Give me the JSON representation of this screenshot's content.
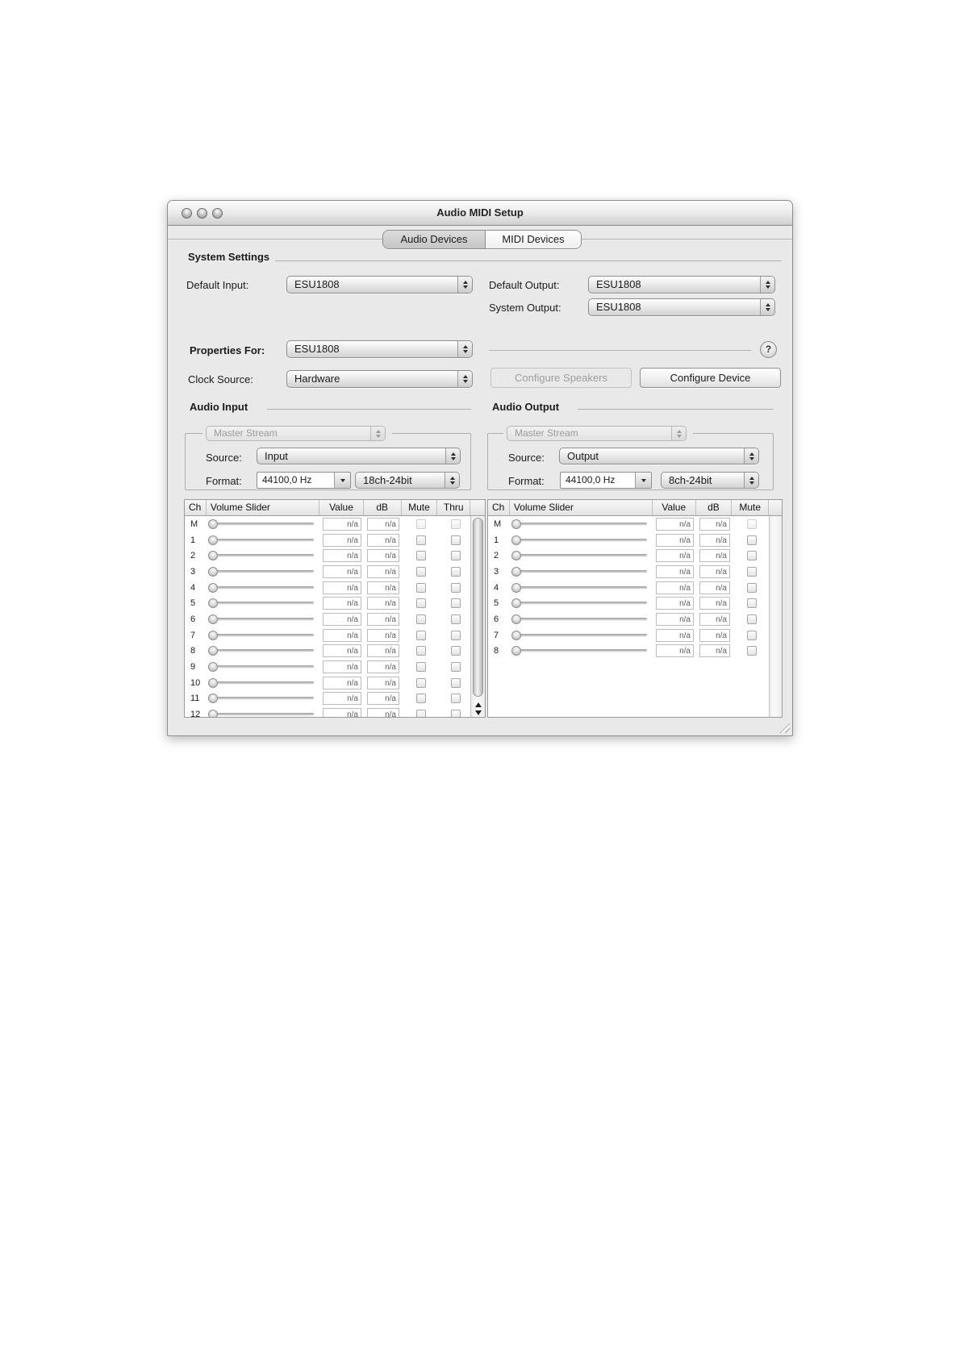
{
  "colors": {
    "window_bg": "#e9e9e9",
    "titlebar_top": "#fbfbfb",
    "titlebar_bottom": "#c6c6c6",
    "selected_tab": "#cdcdcd",
    "unselected_tab": "#ffffff",
    "text": "#1b1b1b",
    "disabled_text": "#9b9b9b"
  },
  "window": {
    "title": "Audio MIDI Setup",
    "tabs": [
      {
        "label": "Audio Devices",
        "selected": true
      },
      {
        "label": "MIDI Devices",
        "selected": false
      }
    ],
    "system_settings": {
      "heading": "System Settings",
      "default_input": {
        "label": "Default Input:",
        "value": "ESU1808"
      },
      "default_output": {
        "label": "Default Output:",
        "value": "ESU1808"
      },
      "system_output": {
        "label": "System Output:",
        "value": "ESU1808"
      },
      "properties_for": {
        "label": "Properties For:",
        "value": "ESU1808"
      },
      "clock_source": {
        "label": "Clock Source:",
        "value": "Hardware"
      },
      "configure_speakers_label": "Configure Speakers",
      "configure_device_label": "Configure Device",
      "help_label": "?"
    },
    "audio_input": {
      "heading": "Audio Input",
      "stream": "Master Stream",
      "source": {
        "label": "Source:",
        "value": "Input"
      },
      "format": {
        "label": "Format:",
        "rate": "44100,0 Hz",
        "depth": "18ch-24bit"
      },
      "table": {
        "headers": [
          "Ch",
          "Volume Slider",
          "Value",
          "dB",
          "Mute",
          "Thru"
        ],
        "rows": [
          {
            "ch": "M",
            "value": "n/a",
            "db": "n/a",
            "mute": false,
            "thru": false
          },
          {
            "ch": "1",
            "value": "n/a",
            "db": "n/a",
            "mute": false,
            "thru": false
          },
          {
            "ch": "2",
            "value": "n/a",
            "db": "n/a",
            "mute": false,
            "thru": false
          },
          {
            "ch": "3",
            "value": "n/a",
            "db": "n/a",
            "mute": false,
            "thru": false
          },
          {
            "ch": "4",
            "value": "n/a",
            "db": "n/a",
            "mute": false,
            "thru": false
          },
          {
            "ch": "5",
            "value": "n/a",
            "db": "n/a",
            "mute": false,
            "thru": false
          },
          {
            "ch": "6",
            "value": "n/a",
            "db": "n/a",
            "mute": false,
            "thru": false
          },
          {
            "ch": "7",
            "value": "n/a",
            "db": "n/a",
            "mute": false,
            "thru": false
          },
          {
            "ch": "8",
            "value": "n/a",
            "db": "n/a",
            "mute": false,
            "thru": false
          },
          {
            "ch": "9",
            "value": "n/a",
            "db": "n/a",
            "mute": false,
            "thru": false
          },
          {
            "ch": "10",
            "value": "n/a",
            "db": "n/a",
            "mute": false,
            "thru": false
          },
          {
            "ch": "11",
            "value": "n/a",
            "db": "n/a",
            "mute": false,
            "thru": false
          },
          {
            "ch": "12",
            "value": "n/a",
            "db": "n/a",
            "mute": false,
            "thru": false
          }
        ]
      }
    },
    "audio_output": {
      "heading": "Audio Output",
      "stream": "Master Stream",
      "source": {
        "label": "Source:",
        "value": "Output"
      },
      "format": {
        "label": "Format:",
        "rate": "44100,0 Hz",
        "depth": "8ch-24bit"
      },
      "table": {
        "headers": [
          "Ch",
          "Volume Slider",
          "Value",
          "dB",
          "Mute"
        ],
        "rows": [
          {
            "ch": "M",
            "value": "n/a",
            "db": "n/a",
            "mute": false
          },
          {
            "ch": "1",
            "value": "n/a",
            "db": "n/a",
            "mute": false
          },
          {
            "ch": "2",
            "value": "n/a",
            "db": "n/a",
            "mute": false
          },
          {
            "ch": "3",
            "value": "n/a",
            "db": "n/a",
            "mute": false
          },
          {
            "ch": "4",
            "value": "n/a",
            "db": "n/a",
            "mute": false
          },
          {
            "ch": "5",
            "value": "n/a",
            "db": "n/a",
            "mute": false
          },
          {
            "ch": "6",
            "value": "n/a",
            "db": "n/a",
            "mute": false
          },
          {
            "ch": "7",
            "value": "n/a",
            "db": "n/a",
            "mute": false
          },
          {
            "ch": "8",
            "value": "n/a",
            "db": "n/a",
            "mute": false
          }
        ]
      }
    }
  }
}
